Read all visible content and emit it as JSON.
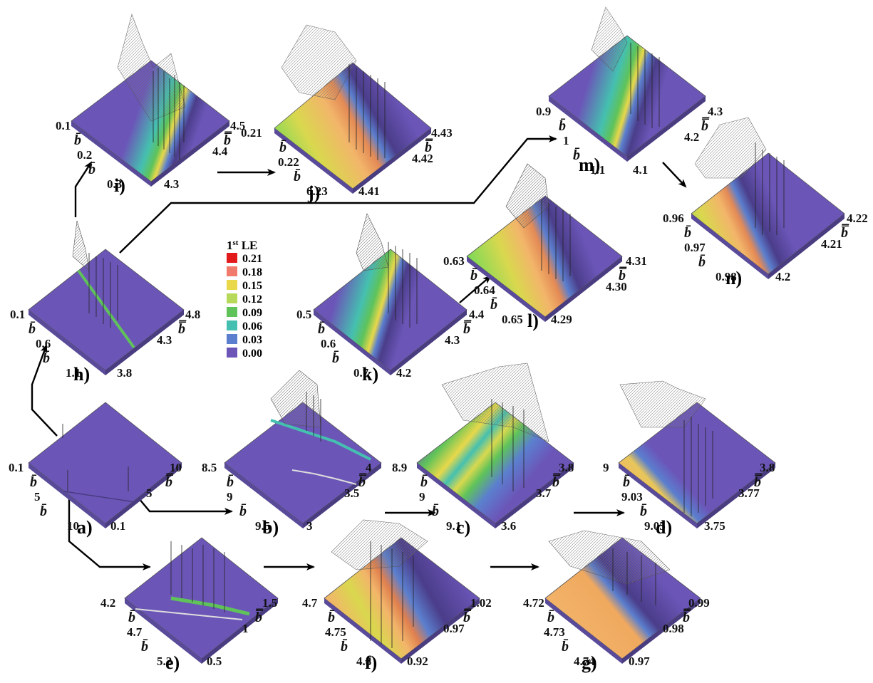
{
  "figure": {
    "axis_symbol_single": "b̄",
    "axis_symbol_double": "b̿",
    "legend": {
      "title_prefix": "1",
      "title_sup": "st",
      "title_suffix": " LE",
      "entries": [
        {
          "value": "0.21",
          "color": "#e31a1c"
        },
        {
          "value": "0.18",
          "color": "#f07b6c"
        },
        {
          "value": "0.15",
          "color": "#e8d84a"
        },
        {
          "value": "0.12",
          "color": "#b7d95a"
        },
        {
          "value": "0.09",
          "color": "#5fc35a"
        },
        {
          "value": "0.06",
          "color": "#45c0b0"
        },
        {
          "value": "0.03",
          "color": "#5b7fce"
        },
        {
          "value": "0.00",
          "color": "#6b56b8"
        }
      ]
    },
    "panels": {
      "a": {
        "label": "a)",
        "b_ticks": [
          "0.1",
          "5",
          "10"
        ],
        "bb_ticks": [
          "10",
          "5",
          "0.1"
        ]
      },
      "b": {
        "label": "b)",
        "b_ticks": [
          "8.5",
          "9",
          "9.5"
        ],
        "bb_ticks": [
          "4",
          "3.5",
          "3"
        ]
      },
      "c": {
        "label": "c)",
        "b_ticks": [
          "8.9",
          "9",
          "9.1"
        ],
        "bb_ticks": [
          "3.8",
          "3.7",
          "3.6"
        ]
      },
      "d": {
        "label": "d)",
        "b_ticks": [
          "9",
          "9.03",
          "9.05"
        ],
        "bb_ticks": [
          "3.8",
          "3.77",
          "3.75"
        ]
      },
      "e": {
        "label": "e)",
        "b_ticks": [
          "4.2",
          "4.7",
          "5.2"
        ],
        "bb_ticks": [
          "1.5",
          "1",
          "0.5"
        ]
      },
      "f": {
        "label": "f)",
        "b_ticks": [
          "4.7",
          "4.75",
          "4.8"
        ],
        "bb_ticks": [
          "1.02",
          "0.97",
          "0.92"
        ]
      },
      "g": {
        "label": "g)",
        "b_ticks": [
          "4.72",
          "4.73",
          "4.74"
        ],
        "bb_ticks": [
          "0.99",
          "0.98",
          "0.97"
        ]
      },
      "h": {
        "label": "h)",
        "b_ticks": [
          "0.1",
          "0.6",
          "1.1"
        ],
        "bb_ticks": [
          "4.8",
          "4.3",
          "3.8"
        ]
      },
      "i": {
        "label": "i)",
        "b_ticks": [
          "0.1",
          "0.2",
          "0.3"
        ],
        "bb_ticks": [
          "4.5",
          "4.4",
          "4.3"
        ]
      },
      "j": {
        "label": "j)",
        "b_ticks": [
          "0.21",
          "0.22",
          "0.23"
        ],
        "bb_ticks": [
          "4.43",
          "4.42",
          "4.41"
        ]
      },
      "k": {
        "label": "k)",
        "b_ticks": [
          "0.5",
          "0.6",
          "0.7"
        ],
        "bb_ticks": [
          "4.4",
          "4.3",
          "4.2"
        ]
      },
      "l": {
        "label": "l)",
        "b_ticks": [
          "0.63",
          "0.64",
          "0.65"
        ],
        "bb_ticks": [
          "4.31",
          "4.30",
          "4.29"
        ]
      },
      "m": {
        "label": "m)",
        "b_ticks": [
          "0.9",
          "1",
          "1.1"
        ],
        "bb_ticks": [
          "4.3",
          "4.2",
          "4.1"
        ]
      },
      "n": {
        "label": "n)",
        "b_ticks": [
          "0.96",
          "0.97",
          "0.98"
        ],
        "bb_ticks": [
          "4.22",
          "4.21",
          "4.2"
        ]
      }
    }
  }
}
